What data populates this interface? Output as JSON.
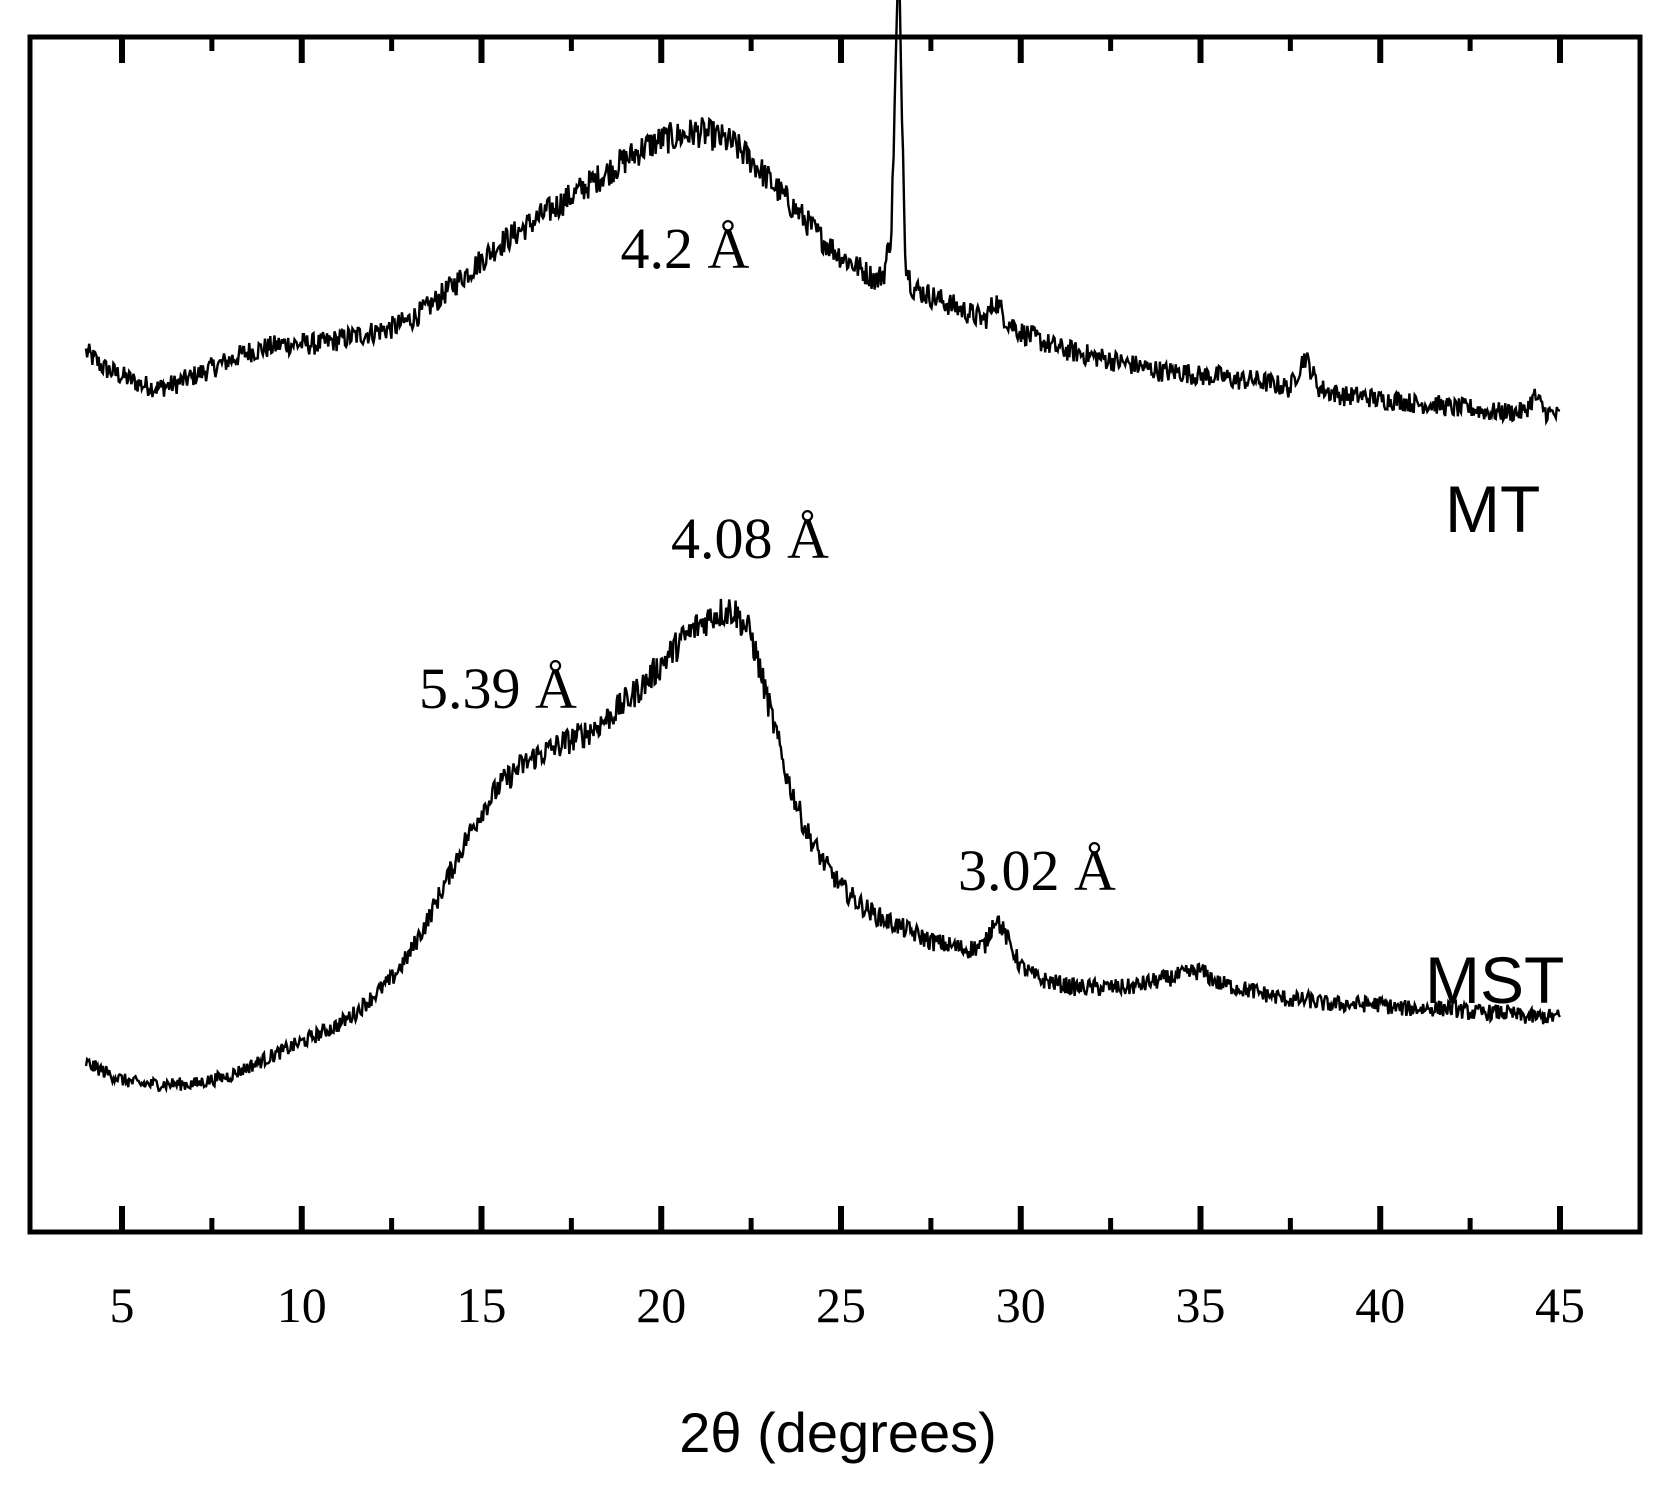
{
  "chart_data": {
    "type": "line",
    "title": "",
    "xlabel": "2θ (degrees)",
    "ylabel": "",
    "xlim": [
      3.5,
      47
    ],
    "xticks": [
      5,
      10,
      15,
      20,
      25,
      30,
      35,
      40,
      45
    ],
    "xtick_labels": [
      "5",
      "10",
      "15",
      "20",
      "25",
      "30",
      "35",
      "40",
      "45"
    ],
    "y_axis": "intensity (arbitrary units, offset, unlabeled)",
    "grid": false,
    "legend": "none; series labelled at right end of each trace",
    "series": [
      {
        "name": "MT",
        "label": "MT",
        "note": "upper trace, vertically offset",
        "x": [
          4,
          4.5,
          5,
          5.5,
          6,
          6.5,
          7,
          7.5,
          8,
          8.5,
          9,
          9.5,
          10,
          10.5,
          11,
          11.5,
          12,
          12.5,
          13,
          13.5,
          14,
          14.5,
          15,
          15.5,
          16,
          16.5,
          17,
          17.5,
          18,
          18.5,
          19,
          19.5,
          20,
          20.5,
          21,
          21.5,
          22,
          22.5,
          23,
          23.5,
          24,
          24.5,
          25,
          25.5,
          26,
          26.2,
          26.4,
          26.6,
          26.8,
          27,
          27.5,
          28,
          28.5,
          29,
          29.3,
          29.6,
          30,
          30.5,
          31,
          31.5,
          32,
          32.5,
          33,
          33.5,
          34,
          34.5,
          35,
          35.5,
          36,
          36.5,
          37,
          37.5,
          37.9,
          38.3,
          38.6,
          39,
          39.5,
          40,
          40.5,
          41,
          41.5,
          42,
          42.5,
          43,
          43.5,
          44,
          44.3,
          44.6,
          45
        ],
        "y": [
          62,
          58,
          56,
          54,
          53,
          54,
          56,
          58,
          60,
          62,
          63,
          64,
          64,
          64,
          65,
          66,
          67,
          68,
          70,
          73,
          77,
          81,
          85,
          89,
          92,
          95,
          98,
          101,
          104,
          107,
          110,
          113,
          115,
          116,
          117,
          116,
          114,
          110,
          105,
          100,
          95,
          90,
          86,
          83,
          80,
          82,
          92,
          160,
          84,
          78,
          76,
          74,
          72,
          70,
          75,
          70,
          67,
          65,
          63,
          62,
          61,
          60,
          59,
          58,
          57,
          57,
          56,
          56,
          55,
          55,
          54,
          53,
          61,
          53,
          52,
          51,
          51,
          50,
          50,
          49,
          49,
          48,
          48,
          47,
          47,
          47,
          51,
          47,
          46
        ]
      },
      {
        "name": "MST",
        "label": "MST",
        "note": "lower trace",
        "x": [
          4,
          4.5,
          5,
          5.5,
          6,
          6.5,
          7,
          7.5,
          8,
          8.5,
          9,
          9.5,
          10,
          10.5,
          11,
          11.5,
          12,
          12.5,
          13,
          13.5,
          14,
          14.5,
          15,
          15.5,
          16,
          16.5,
          17,
          17.5,
          18,
          18.5,
          19,
          19.5,
          20,
          20.5,
          21,
          21.5,
          22,
          22.5,
          23,
          23.5,
          24,
          24.5,
          25,
          25.5,
          26,
          26.5,
          27,
          27.5,
          28,
          28.5,
          29,
          29.3,
          29.6,
          30,
          30.5,
          31,
          31.5,
          32,
          32.5,
          33,
          33.5,
          34,
          34.5,
          35,
          35.5,
          36,
          36.5,
          37,
          37.5,
          38,
          38.5,
          39,
          39.5,
          40,
          40.5,
          41,
          41.5,
          42,
          42.5,
          43,
          43.5,
          44,
          44.5,
          45
        ],
        "y": [
          10,
          8,
          6,
          5,
          5,
          5,
          5,
          6,
          7,
          9,
          11,
          13,
          15,
          17,
          19,
          22,
          26,
          30,
          36,
          44,
          53,
          62,
          70,
          76,
          80,
          83,
          85,
          87,
          89,
          92,
          96,
          100,
          105,
          110,
          114,
          117,
          118,
          112,
          95,
          78,
          66,
          58,
          52,
          48,
          45,
          43,
          41,
          39,
          38,
          37,
          38,
          45,
          40,
          33,
          30,
          29,
          28,
          28,
          28,
          28,
          29,
          30,
          31,
          32,
          29,
          28,
          27,
          26,
          25,
          25,
          24,
          24,
          24,
          24,
          23,
          23,
          23,
          23,
          22,
          22,
          22,
          21,
          21,
          21
        ]
      }
    ],
    "annotations": [
      {
        "text": "4.2 Å",
        "x": 20.5,
        "series": "MT"
      },
      {
        "text": "4.08 Å",
        "x": 22.5,
        "series": "MST"
      },
      {
        "text": "5.39 Å",
        "x": 16.5,
        "series": "MST"
      },
      {
        "text": "3.02 Å",
        "x": 29.5,
        "series": "MST"
      }
    ]
  }
}
